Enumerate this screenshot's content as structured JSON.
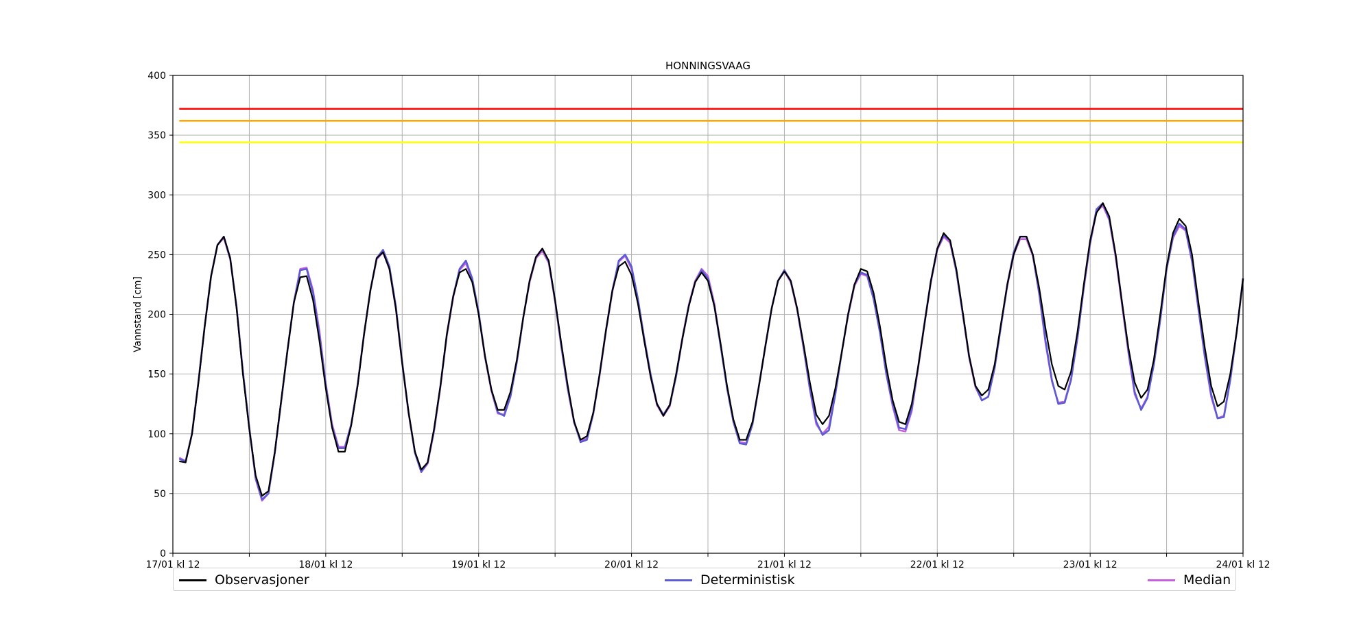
{
  "chart_data": {
    "type": "line",
    "title": "HONNINGSVAAG",
    "xlabel": "",
    "ylabel": "Vannstand [cm]",
    "xlim": [
      0,
      168
    ],
    "ylim": [
      0,
      400
    ],
    "yticks": [
      0,
      50,
      100,
      150,
      200,
      250,
      300,
      350,
      400
    ],
    "xticks": [
      0,
      12,
      24,
      36,
      48,
      60,
      72,
      84,
      96,
      108,
      120,
      132,
      144,
      156,
      168
    ],
    "xtick_labels": [
      "17/01 kl 12",
      "",
      "18/01 kl 12",
      "",
      "19/01 kl 12",
      "",
      "20/01 kl 12",
      "",
      "21/01 kl 12",
      "",
      "22/01 kl 12",
      "",
      "23/01 kl 12",
      "",
      "24/01 kl 12"
    ],
    "x_unit": "hours since 17/01 kl 12",
    "grid": true,
    "legend_position": "bottom",
    "thresholds": [
      {
        "value": 372,
        "color": "#ff0000"
      },
      {
        "value": 362,
        "color": "#ffa500"
      },
      {
        "value": 344,
        "color": "#ffff00"
      }
    ],
    "series": [
      {
        "name": "Observasjoner",
        "color": "#000000",
        "x": [
          1,
          2,
          3,
          4,
          5,
          6,
          7,
          8,
          9,
          10,
          11,
          12,
          13,
          14,
          15,
          16,
          17,
          18,
          19,
          20,
          21,
          22,
          23,
          24,
          25,
          26,
          27,
          28,
          29,
          30,
          31,
          32,
          33,
          34,
          35,
          36,
          37,
          38,
          39,
          40,
          41,
          42,
          43,
          44,
          45,
          46,
          47,
          48,
          49,
          50,
          51,
          52,
          53,
          54,
          55,
          56,
          57,
          58,
          59,
          60,
          61,
          62,
          63,
          64,
          65,
          66,
          67,
          68,
          69,
          70,
          71,
          72,
          73,
          74,
          75,
          76,
          77,
          78,
          79,
          80,
          81,
          82,
          83,
          84,
          85,
          86,
          87,
          88,
          89,
          90,
          91,
          92,
          93,
          94,
          95,
          96,
          97,
          98,
          99,
          100,
          101,
          102,
          103,
          104,
          105,
          106,
          107,
          108,
          109,
          110,
          111,
          112,
          113,
          114,
          115,
          116,
          117,
          118,
          119,
          120,
          121,
          122,
          123,
          124,
          125,
          126,
          127,
          128,
          129,
          130,
          131,
          132,
          133,
          134,
          135,
          136,
          137,
          138,
          139,
          140,
          141,
          142,
          143,
          144,
          145,
          146,
          147,
          148,
          149,
          150,
          151,
          152,
          153,
          154,
          155,
          156,
          157,
          158,
          159,
          160,
          161,
          162,
          163,
          164,
          165,
          166,
          167,
          168
        ],
        "values": [
          77,
          76,
          100,
          142,
          190,
          232,
          258,
          265,
          247,
          205,
          150,
          104,
          65,
          48,
          52,
          85,
          128,
          170,
          210,
          231,
          232,
          212,
          178,
          138,
          105,
          85,
          85,
          107,
          140,
          183,
          220,
          247,
          252,
          238,
          205,
          159,
          118,
          85,
          70,
          76,
          104,
          140,
          183,
          215,
          235,
          238,
          227,
          200,
          165,
          137,
          120,
          120,
          135,
          162,
          197,
          228,
          248,
          255,
          245,
          212,
          175,
          140,
          110,
          95,
          98,
          118,
          150,
          187,
          220,
          240,
          244,
          233,
          209,
          178,
          148,
          125,
          115,
          124,
          150,
          180,
          207,
          227,
          235,
          228,
          207,
          175,
          140,
          112,
          95,
          95,
          110,
          140,
          173,
          205,
          228,
          236,
          228,
          205,
          175,
          143,
          116,
          108,
          115,
          138,
          168,
          200,
          225,
          238,
          236,
          218,
          190,
          156,
          128,
          110,
          108,
          125,
          156,
          192,
          228,
          255,
          268,
          262,
          238,
          202,
          165,
          140,
          132,
          137,
          158,
          192,
          225,
          250,
          265,
          265,
          250,
          222,
          188,
          158,
          140,
          137,
          152,
          185,
          225,
          262,
          285,
          293,
          282,
          250,
          210,
          172,
          143,
          130,
          137,
          162,
          200,
          240,
          268,
          280,
          274,
          250,
          210,
          172,
          140,
          123,
          127,
          150,
          185,
          230
        ]
      },
      {
        "name": "Deterministisk",
        "color": "#5b5bd6",
        "x": [
          1,
          2,
          3,
          4,
          5,
          6,
          7,
          8,
          9,
          10,
          11,
          12,
          13,
          14,
          15,
          16,
          17,
          18,
          19,
          20,
          21,
          22,
          23,
          24,
          25,
          26,
          27,
          28,
          29,
          30,
          31,
          32,
          33,
          34,
          35,
          36,
          37,
          38,
          39,
          40,
          41,
          42,
          43,
          44,
          45,
          46,
          47,
          48,
          49,
          50,
          51,
          52,
          53,
          54,
          55,
          56,
          57,
          58,
          59,
          60,
          61,
          62,
          63,
          64,
          65,
          66,
          67,
          68,
          69,
          70,
          71,
          72,
          73,
          74,
          75,
          76,
          77,
          78,
          79,
          80,
          81,
          82,
          83,
          84,
          85,
          86,
          87,
          88,
          89,
          90,
          91,
          92,
          93,
          94,
          95,
          96,
          97,
          98,
          99,
          100,
          101,
          102,
          103,
          104,
          105,
          106,
          107,
          108,
          109,
          110,
          111,
          112,
          113,
          114,
          115,
          116,
          117,
          118,
          119,
          120,
          121,
          122,
          123,
          124,
          125,
          126,
          127,
          128,
          129,
          130,
          131,
          132,
          133,
          134,
          135,
          136,
          137,
          138,
          139,
          140,
          141,
          142,
          143,
          144,
          145,
          146,
          147,
          148,
          149,
          150,
          151,
          152,
          153,
          154,
          155,
          156,
          157,
          158,
          159,
          160,
          161,
          162,
          163,
          164,
          165,
          166,
          167,
          168
        ],
        "values": [
          79,
          77,
          100,
          143,
          190,
          232,
          258,
          265,
          247,
          206,
          152,
          105,
          63,
          45,
          50,
          84,
          127,
          170,
          210,
          237,
          238,
          218,
          183,
          141,
          106,
          88,
          88,
          108,
          141,
          183,
          220,
          247,
          254,
          240,
          207,
          160,
          118,
          84,
          68,
          76,
          103,
          140,
          183,
          215,
          238,
          245,
          230,
          202,
          165,
          137,
          118,
          115,
          131,
          160,
          197,
          228,
          248,
          255,
          244,
          212,
          173,
          138,
          110,
          93,
          95,
          117,
          150,
          187,
          220,
          245,
          250,
          240,
          213,
          180,
          150,
          125,
          116,
          124,
          148,
          180,
          207,
          227,
          237,
          230,
          207,
          173,
          138,
          110,
          92,
          91,
          108,
          140,
          173,
          205,
          228,
          237,
          228,
          205,
          173,
          138,
          110,
          99,
          103,
          133,
          168,
          200,
          225,
          235,
          233,
          213,
          185,
          150,
          125,
          105,
          104,
          121,
          156,
          193,
          228,
          255,
          266,
          262,
          236,
          201,
          165,
          140,
          128,
          131,
          155,
          190,
          225,
          252,
          265,
          265,
          250,
          218,
          178,
          145,
          125,
          126,
          145,
          180,
          223,
          260,
          288,
          293,
          280,
          250,
          210,
          170,
          135,
          120,
          130,
          158,
          195,
          238,
          265,
          276,
          271,
          245,
          205,
          165,
          133,
          113,
          114,
          145,
          185,
          230
        ]
      },
      {
        "name": "Median",
        "color": "#c55fe0",
        "x": [
          1,
          2,
          3,
          4,
          5,
          6,
          7,
          8,
          9,
          10,
          11,
          12,
          13,
          14,
          15,
          16,
          17,
          18,
          19,
          20,
          21,
          22,
          23,
          24,
          25,
          26,
          27,
          28,
          29,
          30,
          31,
          32,
          33,
          34,
          35,
          36,
          37,
          38,
          39,
          40,
          41,
          42,
          43,
          44,
          45,
          46,
          47,
          48,
          49,
          50,
          51,
          52,
          53,
          54,
          55,
          56,
          57,
          58,
          59,
          60,
          61,
          62,
          63,
          64,
          65,
          66,
          67,
          68,
          69,
          70,
          71,
          72,
          73,
          74,
          75,
          76,
          77,
          78,
          79,
          80,
          81,
          82,
          83,
          84,
          85,
          86,
          87,
          88,
          89,
          90,
          91,
          92,
          93,
          94,
          95,
          96,
          97,
          98,
          99,
          100,
          101,
          102,
          103,
          104,
          105,
          106,
          107,
          108,
          109,
          110,
          111,
          112,
          113,
          114,
          115,
          116,
          117,
          118,
          119,
          120,
          121,
          122,
          123,
          124,
          125,
          126,
          127,
          128,
          129,
          130,
          131,
          132,
          133,
          134,
          135,
          136,
          137,
          138,
          139,
          140,
          141,
          142,
          143,
          144,
          145,
          146,
          147,
          148,
          149,
          150,
          151,
          152,
          153,
          154,
          155,
          156,
          157,
          158,
          159,
          160,
          161,
          162,
          163,
          164,
          165,
          166,
          167,
          168
        ],
        "values": [
          80,
          77,
          100,
          143,
          190,
          232,
          258,
          264,
          246,
          206,
          152,
          105,
          62,
          44,
          50,
          84,
          127,
          170,
          210,
          238,
          239,
          220,
          186,
          142,
          108,
          89,
          89,
          108,
          141,
          183,
          220,
          246,
          252,
          238,
          205,
          159,
          117,
          84,
          68,
          75,
          102,
          139,
          182,
          214,
          237,
          243,
          229,
          201,
          164,
          136,
          117,
          116,
          132,
          160,
          197,
          227,
          247,
          253,
          243,
          211,
          172,
          137,
          109,
          94,
          96,
          117,
          149,
          186,
          219,
          244,
          249,
          238,
          211,
          178,
          148,
          124,
          115,
          123,
          149,
          181,
          208,
          228,
          238,
          232,
          209,
          174,
          138,
          110,
          93,
          92,
          109,
          140,
          173,
          205,
          228,
          236,
          227,
          204,
          172,
          137,
          108,
          100,
          106,
          134,
          168,
          199,
          224,
          234,
          232,
          213,
          185,
          150,
          123,
          103,
          102,
          119,
          155,
          192,
          227,
          254,
          265,
          260,
          236,
          200,
          164,
          139,
          128,
          131,
          155,
          190,
          224,
          250,
          263,
          263,
          249,
          217,
          176,
          144,
          126,
          127,
          146,
          180,
          222,
          259,
          286,
          291,
          279,
          248,
          208,
          168,
          133,
          121,
          131,
          159,
          196,
          238,
          264,
          274,
          270,
          244,
          204,
          164,
          131,
          113,
          115,
          145,
          185,
          229
        ]
      }
    ]
  }
}
